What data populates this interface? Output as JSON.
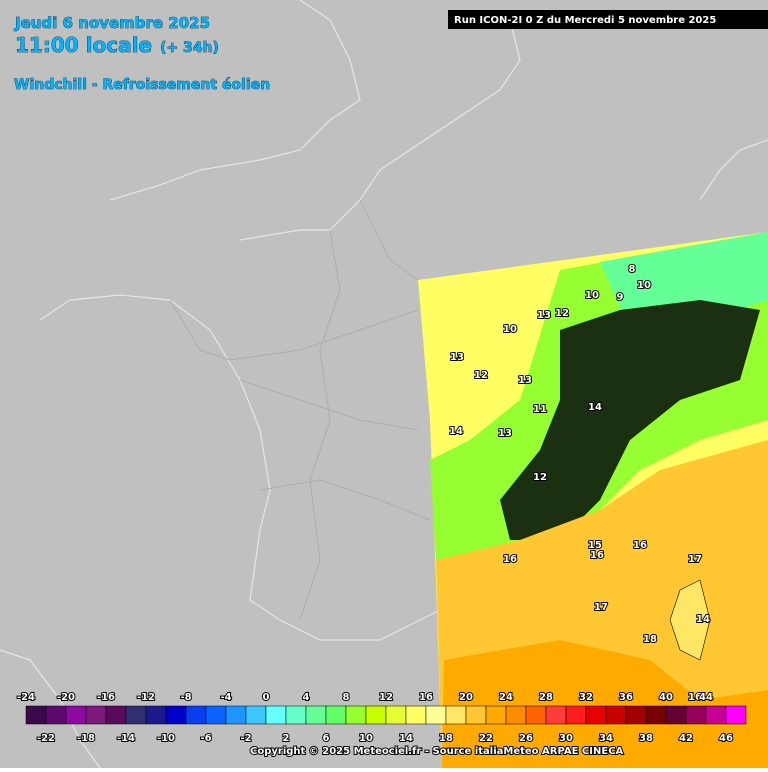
{
  "header": {
    "date": "Jeudi 6 novembre 2025",
    "time": "11:00 locale",
    "offset": "(+ 34h)",
    "subtitle": "Windchill - Refroissement éolien",
    "run": "Run ICON-2I 0 Z du Mercredi 5 novembre 2025"
  },
  "legend": {
    "ticks": [
      -24,
      -22,
      -20,
      -18,
      -16,
      -14,
      -12,
      -10,
      -8,
      -6,
      -4,
      -2,
      0,
      2,
      4,
      6,
      8,
      10,
      12,
      14,
      16,
      18,
      20,
      22,
      24,
      26,
      28,
      30,
      32,
      34,
      36,
      38,
      40,
      42,
      44,
      46
    ],
    "colors": [
      "#3a0a4a",
      "#5c0a6e",
      "#8c0aa0",
      "#7a1a7a",
      "#5a0a5a",
      "#303070",
      "#1a1a8c",
      "#0000c8",
      "#0a3cf0",
      "#0a64ff",
      "#1e96ff",
      "#3cc8ff",
      "#64ffff",
      "#64ffc8",
      "#64ff96",
      "#64ff64",
      "#96ff32",
      "#c8ff00",
      "#e6ff32",
      "#ffff64",
      "#ffff96",
      "#ffe664",
      "#ffc832",
      "#ffaa00",
      "#ff8c00",
      "#ff6400",
      "#ff3c3c",
      "#ff1e1e",
      "#e60000",
      "#c80000",
      "#a00000",
      "#780000",
      "#640032",
      "#96005a",
      "#c80096",
      "#ff00ff"
    ]
  },
  "map_labels": [
    8,
    10,
    9,
    10,
    13,
    12,
    10,
    13,
    12,
    14,
    13,
    11,
    13,
    14,
    12,
    16,
    15,
    16,
    16,
    17,
    17,
    18,
    16,
    14
  ],
  "footer": {
    "copyright": "Copyright © 2025 Meteociel.fr - Source italiaMeteo ARPAE CINECA"
  }
}
